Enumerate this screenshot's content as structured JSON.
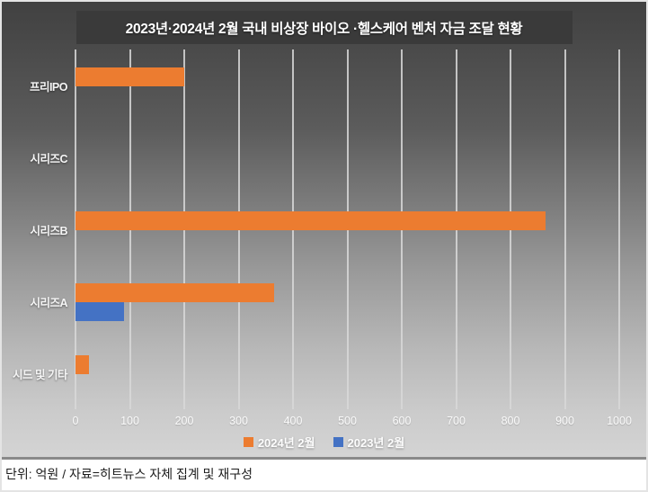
{
  "chart_data": {
    "type": "bar",
    "orientation": "horizontal",
    "title": "2023년·2024년 2월 국내 비상장 바이오 ·헬스케어 벤처 자금 조달 현황",
    "categories": [
      "프리IPO",
      "시리즈C",
      "시리즈B",
      "시리즈A",
      "시드 및 기타"
    ],
    "series": [
      {
        "name": "2024년 2월",
        "color": "#EC7C30",
        "values": [
          200,
          0,
          865,
          365,
          25
        ]
      },
      {
        "name": "2023년 2월",
        "color": "#4472C4",
        "values": [
          0,
          0,
          0,
          90,
          0
        ]
      }
    ],
    "xlim": [
      0,
      1000
    ],
    "xticks": [
      0,
      100,
      200,
      300,
      400,
      500,
      600,
      700,
      800,
      900,
      1000
    ],
    "grid": "vertical",
    "legend_position": "bottom"
  },
  "footer": {
    "text": "단위: 억원 / 자료=히트뉴스 자체 집계 및 재구성"
  },
  "colors": {
    "background_top": "#414141",
    "background_bottom": "#d4d4d4",
    "title_box": "#3a3a3a",
    "gridline": "#d8d8d8",
    "separator": "#8a8a8a"
  }
}
